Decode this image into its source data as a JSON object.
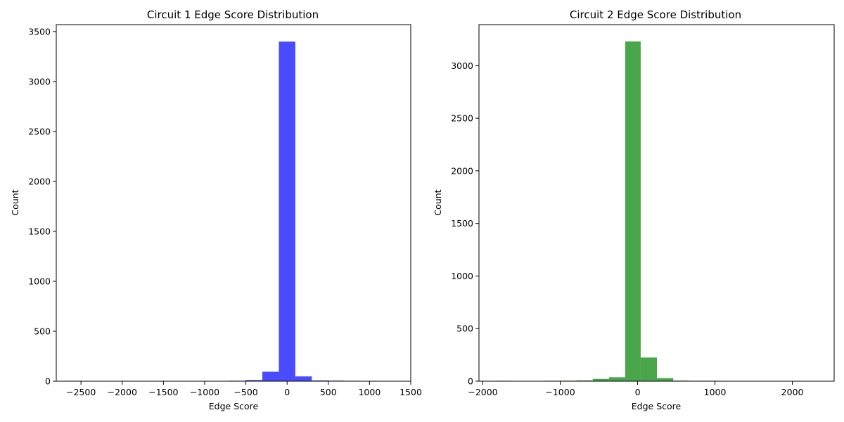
{
  "chart_data": [
    {
      "type": "bar",
      "title": "Circuit 1 Edge Score Distribution",
      "xlabel": "Edge Score",
      "ylabel": "Count",
      "xlim": [
        -2800,
        1500
      ],
      "ylim": [
        0,
        3570
      ],
      "xticks": [
        -2500,
        -2000,
        -1500,
        -1000,
        -500,
        0,
        500,
        1000,
        1500
      ],
      "xtick_labels": [
        "−2500",
        "−2000",
        "−1500",
        "−1000",
        "−500",
        "0",
        "500",
        "1000",
        "1500"
      ],
      "yticks": [
        0,
        500,
        1000,
        1500,
        2000,
        2500,
        3000,
        3500
      ],
      "ytick_labels": [
        "0",
        "500",
        "1000",
        "1500",
        "2000",
        "2500",
        "3000",
        "3500"
      ],
      "color": "#4a4aff",
      "bins": [
        {
          "x0": -2700,
          "x1": -2500,
          "count": 4
        },
        {
          "x0": -1100,
          "x1": -900,
          "count": 3
        },
        {
          "x0": -700,
          "x1": -500,
          "count": 5
        },
        {
          "x0": -500,
          "x1": -300,
          "count": 12
        },
        {
          "x0": -300,
          "x1": -100,
          "count": 95
        },
        {
          "x0": -100,
          "x1": 100,
          "count": 3400
        },
        {
          "x0": 100,
          "x1": 300,
          "count": 48
        },
        {
          "x0": 300,
          "x1": 500,
          "count": 8
        },
        {
          "x0": 500,
          "x1": 700,
          "count": 6
        },
        {
          "x0": 700,
          "x1": 900,
          "count": 4
        },
        {
          "x0": 1100,
          "x1": 1300,
          "count": 3
        }
      ]
    },
    {
      "type": "bar",
      "title": "Circuit 2 Edge Score Distribution",
      "xlabel": "Edge Score",
      "ylabel": "Count",
      "xlim": [
        -2050,
        2540
      ],
      "ylim": [
        0,
        3390
      ],
      "xticks": [
        -2000,
        -1000,
        0,
        1000,
        2000
      ],
      "xtick_labels": [
        "−2000",
        "−1000",
        "0",
        "1000",
        "2000"
      ],
      "yticks": [
        0,
        500,
        1000,
        1500,
        2000,
        2500,
        3000
      ],
      "ytick_labels": [
        "0",
        "500",
        "1000",
        "1500",
        "2000",
        "2500",
        "3000"
      ],
      "color": "#4aa64a",
      "bins": [
        {
          "x0": -1840,
          "x1": -1630,
          "count": 4
        },
        {
          "x0": -1630,
          "x1": -1420,
          "count": 3
        },
        {
          "x0": -1210,
          "x1": -1000,
          "count": 4
        },
        {
          "x0": -1000,
          "x1": -790,
          "count": 5
        },
        {
          "x0": -790,
          "x1": -580,
          "count": 8
        },
        {
          "x0": -580,
          "x1": -370,
          "count": 22
        },
        {
          "x0": -370,
          "x1": -160,
          "count": 38
        },
        {
          "x0": -160,
          "x1": 40,
          "count": 3230
        },
        {
          "x0": 40,
          "x1": 250,
          "count": 225
        },
        {
          "x0": 250,
          "x1": 460,
          "count": 30
        },
        {
          "x0": 460,
          "x1": 670,
          "count": 6
        },
        {
          "x0": 670,
          "x1": 880,
          "count": 4
        },
        {
          "x0": 880,
          "x1": 1090,
          "count": 4
        }
      ]
    }
  ]
}
